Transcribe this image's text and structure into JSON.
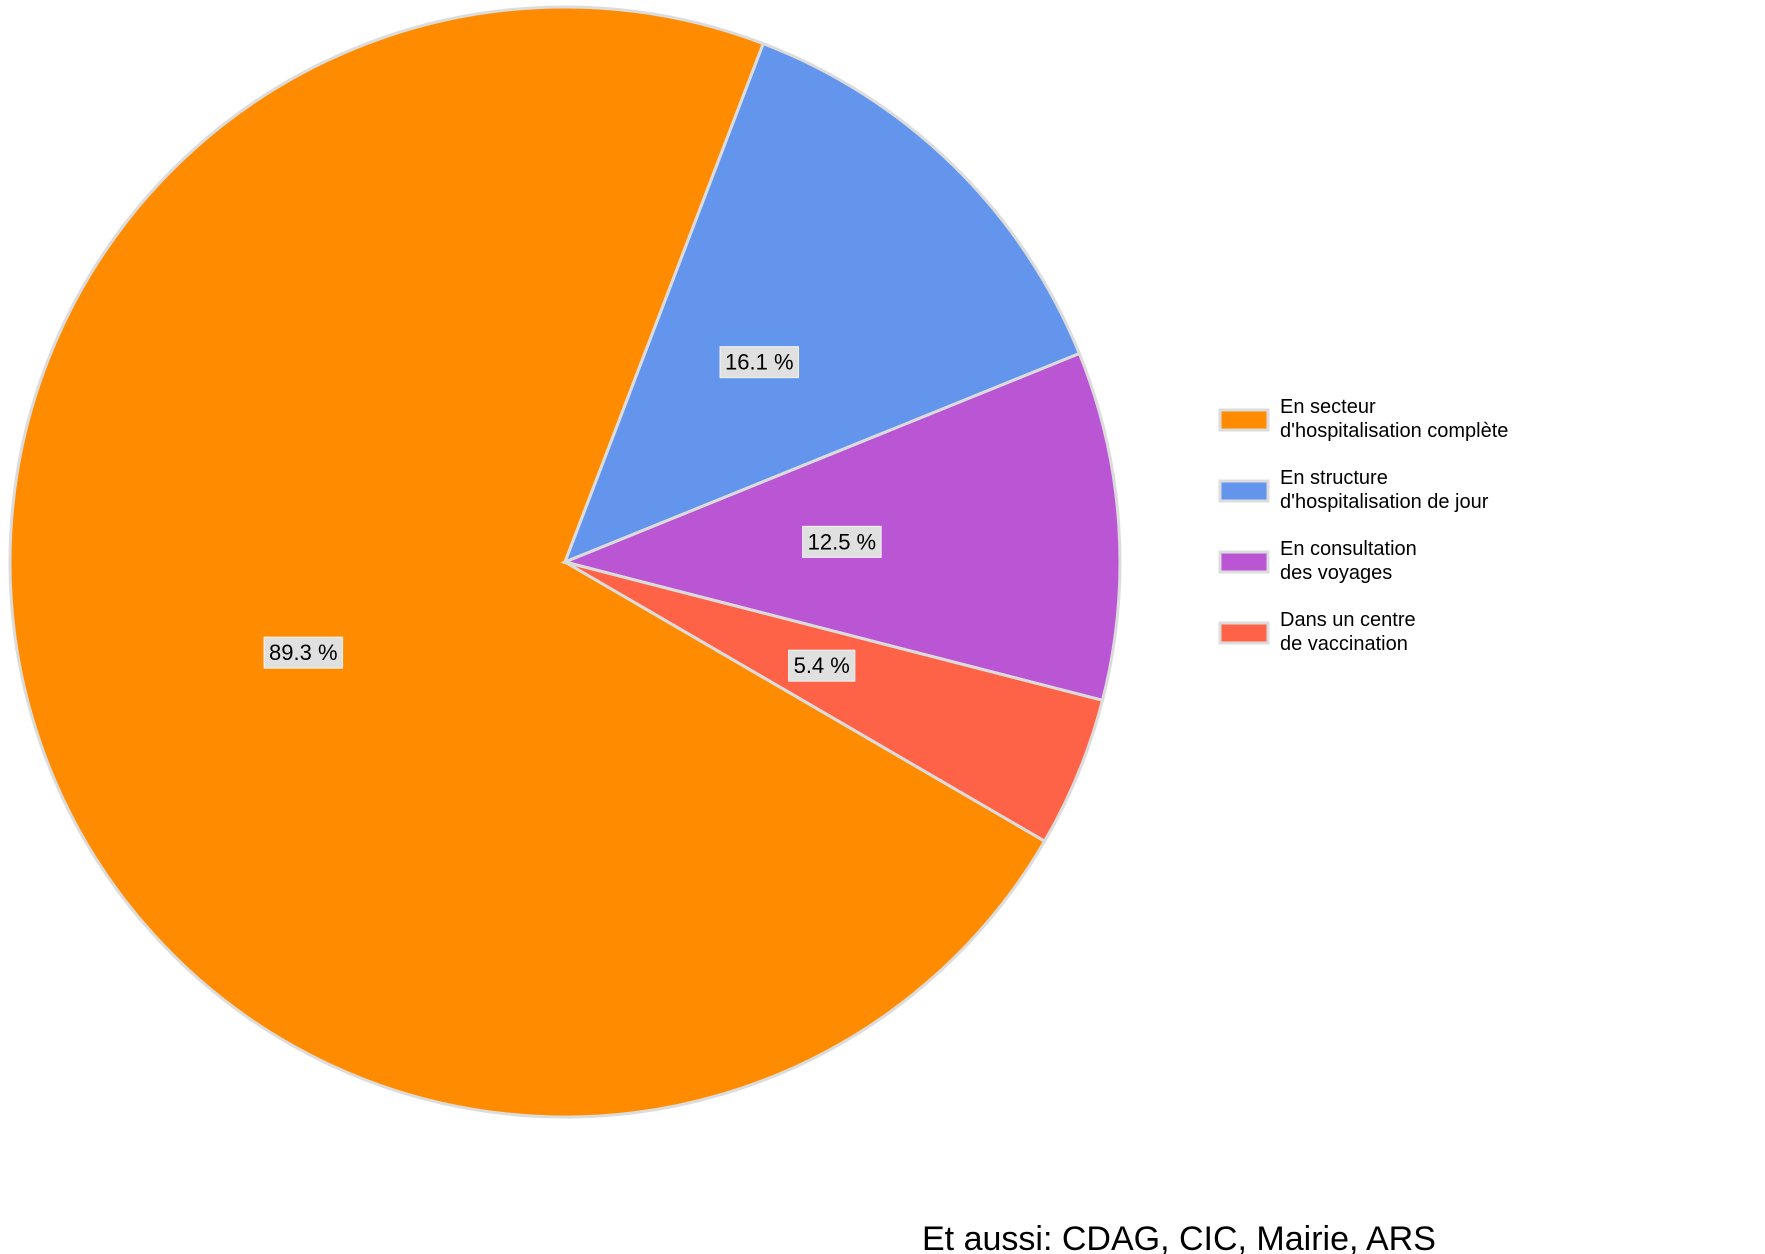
{
  "chart_data": {
    "type": "pie",
    "categories": [
      "En secteur\nd'hospitalisation complète",
      "En structure\nd'hospitalisation de jour",
      "En consultation\ndes voyages",
      "Dans un centre\nde vaccination"
    ],
    "values": [
      89.3,
      16.1,
      12.5,
      5.4
    ],
    "value_labels": [
      "89.3 %",
      "16.1 %",
      "12.5 %",
      "5.4 %"
    ],
    "colors": [
      "#ff8c00",
      "#6495ed",
      "#ba55d3",
      "#ff6347"
    ],
    "legend": "right",
    "annotation": "Et aussi: CDAG, CIC, Mairie, ARS"
  }
}
